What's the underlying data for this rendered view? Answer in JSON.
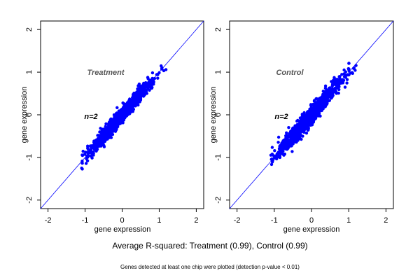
{
  "footer": {
    "summary": "Average R-squared: Treatment (0.99), Control (0.99)",
    "note": "Genes detected at least one chip were plotted (detection p-value < 0.01)"
  },
  "colors": {
    "points": "#0000ff",
    "diagonal": "#0000ff",
    "axes": "#000000",
    "panel_label": "#555555"
  },
  "chart_data": [
    {
      "type": "scatter",
      "title": "Treatment",
      "annotation": "n=2",
      "xlabel": "gene expression",
      "ylabel": "gene expression",
      "xlim": [
        -2.2,
        2.2
      ],
      "ylim": [
        -2.2,
        2.2
      ],
      "xticks": [
        "-2",
        "-1",
        "0",
        "1",
        "2"
      ],
      "yticks": [
        "-2",
        "-1",
        "0",
        "1",
        "2"
      ],
      "reference_line": "y = x",
      "cloud": {
        "x_range": [
          -1.1,
          1.2
        ],
        "slope": 1.0,
        "spread": 0.08
      },
      "grid": false,
      "legend": "none"
    },
    {
      "type": "scatter",
      "title": "Control",
      "annotation": "n=2",
      "xlabel": "gene expression",
      "ylabel": "gene expression",
      "xlim": [
        -2.2,
        2.2
      ],
      "ylim": [
        -2.2,
        2.2
      ],
      "xticks": [
        "-2",
        "-1",
        "0",
        "1",
        "2"
      ],
      "yticks": [
        "-2",
        "-1",
        "0",
        "1",
        "2"
      ],
      "reference_line": "y = x",
      "cloud": {
        "x_range": [
          -1.1,
          1.2
        ],
        "slope": 1.0,
        "spread": 0.1
      },
      "grid": false,
      "legend": "none"
    }
  ]
}
